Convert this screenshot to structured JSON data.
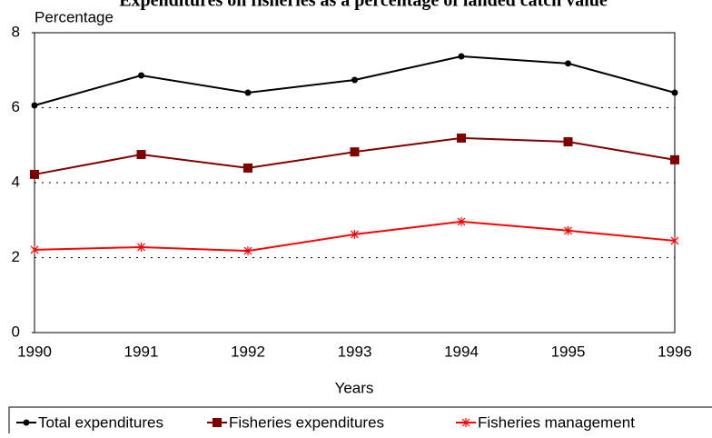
{
  "chart_data": {
    "type": "line",
    "title": "Expenditures on fisheries as a percentage of landed catch value",
    "ylabel": "Percentage",
    "xlabel": "Years",
    "categories": [
      "1990",
      "1991",
      "1992",
      "1993",
      "1994",
      "1995",
      "1996"
    ],
    "ylim": [
      0,
      8
    ],
    "yticks": [
      0,
      2,
      4,
      6,
      8
    ],
    "grid": true,
    "series": [
      {
        "name": "Total expenditures",
        "color": "#000000",
        "marker": "circle",
        "values": [
          6.06,
          6.86,
          6.4,
          6.74,
          7.37,
          7.18,
          6.4
        ]
      },
      {
        "name": "Fisheries expenditures",
        "color": "#800000",
        "marker": "square",
        "values": [
          4.22,
          4.75,
          4.39,
          4.82,
          5.19,
          5.09,
          4.61
        ]
      },
      {
        "name": "Fisheries management",
        "color": "#ff0000",
        "marker": "star",
        "values": [
          2.21,
          2.28,
          2.18,
          2.62,
          2.96,
          2.72,
          2.45
        ]
      }
    ]
  }
}
